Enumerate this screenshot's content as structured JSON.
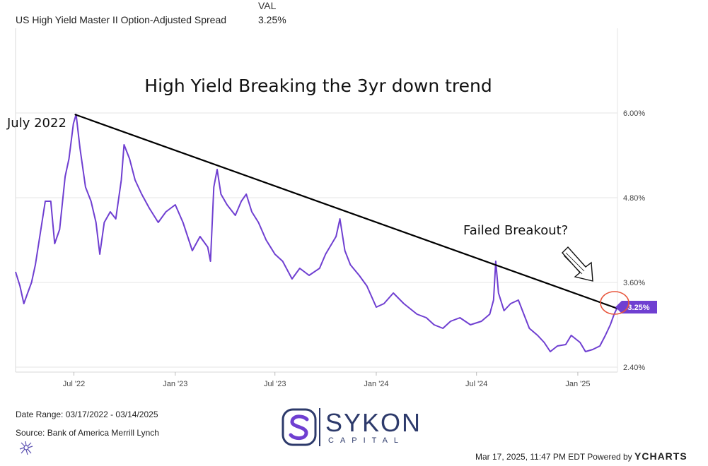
{
  "legend": {
    "header": "VAL",
    "series_name": "US High Yield Master II Option-Adjusted Spread",
    "series_value": "3.25%"
  },
  "annotations": {
    "title": "High Yield Breaking the 3yr down trend",
    "peak_label": "July 2022",
    "breakout_label": "Failed Breakout?"
  },
  "footer": {
    "date_range": "Date Range: 03/17/2022 - 03/14/2025",
    "source": "Source: Bank of America Merrill Lynch",
    "timestamp": "Mar 17, 2025, 11:47 PM EDT Powered by",
    "powered_brand": "YCHARTS"
  },
  "brand": {
    "name": "SYKON",
    "sub": "CAPITAL"
  },
  "colors": {
    "series": "#6f3fd1",
    "trendline": "#000000",
    "grid": "#e6e6e6",
    "highlight_circle": "#e8553b"
  },
  "chart_data": {
    "type": "line",
    "title": "High Yield Breaking the 3yr down trend",
    "xlabel": "",
    "ylabel": "",
    "x_ticks": [
      "Jul '22",
      "Jan '23",
      "Jul '23",
      "Jan '24",
      "Jul '24",
      "Jan '25"
    ],
    "y_ticks": [
      "2.40%",
      "3.60%",
      "4.80%",
      "6.00%"
    ],
    "ylim": [
      2.4,
      6.0
    ],
    "xlim": [
      "2022-03-17",
      "2025-03-14"
    ],
    "grid": true,
    "last_value_label": "3.25%",
    "series": [
      {
        "name": "US High Yield Master II Option-Adjusted Spread",
        "points": [
          [
            "2022-03-17",
            3.75
          ],
          [
            "2022-03-25",
            3.55
          ],
          [
            "2022-04-01",
            3.3
          ],
          [
            "2022-04-08",
            3.45
          ],
          [
            "2022-04-15",
            3.6
          ],
          [
            "2022-04-22",
            3.85
          ],
          [
            "2022-05-01",
            4.3
          ],
          [
            "2022-05-10",
            4.75
          ],
          [
            "2022-05-20",
            4.75
          ],
          [
            "2022-05-27",
            4.15
          ],
          [
            "2022-06-05",
            4.35
          ],
          [
            "2022-06-15",
            5.1
          ],
          [
            "2022-06-22",
            5.35
          ],
          [
            "2022-06-30",
            5.85
          ],
          [
            "2022-07-05",
            5.98
          ],
          [
            "2022-07-12",
            5.5
          ],
          [
            "2022-07-22",
            4.95
          ],
          [
            "2022-08-01",
            4.75
          ],
          [
            "2022-08-10",
            4.45
          ],
          [
            "2022-08-17",
            4.0
          ],
          [
            "2022-08-25",
            4.45
          ],
          [
            "2022-09-05",
            4.6
          ],
          [
            "2022-09-15",
            4.5
          ],
          [
            "2022-09-25",
            5.05
          ],
          [
            "2022-09-30",
            5.55
          ],
          [
            "2022-10-10",
            5.35
          ],
          [
            "2022-10-20",
            5.05
          ],
          [
            "2022-11-01",
            4.85
          ],
          [
            "2022-11-15",
            4.65
          ],
          [
            "2022-12-01",
            4.45
          ],
          [
            "2022-12-15",
            4.6
          ],
          [
            "2023-01-01",
            4.7
          ],
          [
            "2023-01-15",
            4.45
          ],
          [
            "2023-02-01",
            4.05
          ],
          [
            "2023-02-15",
            4.25
          ],
          [
            "2023-03-01",
            4.1
          ],
          [
            "2023-03-06",
            3.9
          ],
          [
            "2023-03-12",
            4.95
          ],
          [
            "2023-03-18",
            5.2
          ],
          [
            "2023-03-25",
            4.85
          ],
          [
            "2023-04-05",
            4.7
          ],
          [
            "2023-04-20",
            4.55
          ],
          [
            "2023-05-01",
            4.75
          ],
          [
            "2023-05-10",
            4.85
          ],
          [
            "2023-05-20",
            4.6
          ],
          [
            "2023-06-01",
            4.45
          ],
          [
            "2023-06-15",
            4.2
          ],
          [
            "2023-07-01",
            4.0
          ],
          [
            "2023-07-15",
            3.9
          ],
          [
            "2023-08-01",
            3.65
          ],
          [
            "2023-08-15",
            3.8
          ],
          [
            "2023-09-01",
            3.7
          ],
          [
            "2023-09-20",
            3.8
          ],
          [
            "2023-10-01",
            4.0
          ],
          [
            "2023-10-20",
            4.25
          ],
          [
            "2023-10-27",
            4.5
          ],
          [
            "2023-11-05",
            4.05
          ],
          [
            "2023-11-15",
            3.85
          ],
          [
            "2023-12-01",
            3.7
          ],
          [
            "2023-12-15",
            3.55
          ],
          [
            "2024-01-01",
            3.25
          ],
          [
            "2024-01-15",
            3.3
          ],
          [
            "2024-02-01",
            3.45
          ],
          [
            "2024-02-20",
            3.3
          ],
          [
            "2024-03-15",
            3.15
          ],
          [
            "2024-04-01",
            3.1
          ],
          [
            "2024-04-15",
            3.0
          ],
          [
            "2024-05-01",
            2.95
          ],
          [
            "2024-05-15",
            3.05
          ],
          [
            "2024-06-01",
            3.1
          ],
          [
            "2024-06-20",
            3.0
          ],
          [
            "2024-07-10",
            3.05
          ],
          [
            "2024-07-25",
            3.15
          ],
          [
            "2024-08-01",
            3.35
          ],
          [
            "2024-08-05",
            3.9
          ],
          [
            "2024-08-10",
            3.45
          ],
          [
            "2024-08-20",
            3.2
          ],
          [
            "2024-09-01",
            3.3
          ],
          [
            "2024-09-15",
            3.35
          ],
          [
            "2024-09-25",
            3.15
          ],
          [
            "2024-10-05",
            2.95
          ],
          [
            "2024-10-20",
            2.85
          ],
          [
            "2024-11-01",
            2.75
          ],
          [
            "2024-11-12",
            2.62
          ],
          [
            "2024-11-25",
            2.7
          ],
          [
            "2024-12-10",
            2.72
          ],
          [
            "2024-12-20",
            2.85
          ],
          [
            "2025-01-05",
            2.75
          ],
          [
            "2025-01-15",
            2.62
          ],
          [
            "2025-01-28",
            2.65
          ],
          [
            "2025-02-10",
            2.7
          ],
          [
            "2025-02-20",
            2.85
          ],
          [
            "2025-03-01",
            3.0
          ],
          [
            "2025-03-08",
            3.15
          ],
          [
            "2025-03-14",
            3.25
          ]
        ]
      }
    ],
    "trendline": [
      [
        "2022-07-05",
        5.98
      ],
      [
        "2025-03-14",
        3.2
      ]
    ]
  }
}
